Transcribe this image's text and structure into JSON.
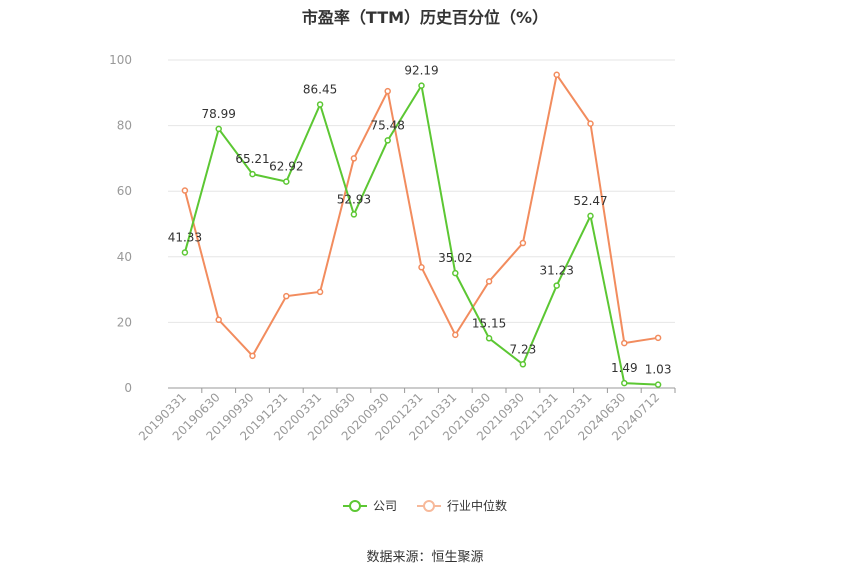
{
  "chart_data": {
    "type": "line",
    "title": "市盈率（TTM）历史百分位（%）",
    "categories": [
      "20190331",
      "20190630",
      "20190930",
      "20191231",
      "20200331",
      "20200630",
      "20200930",
      "20201231",
      "20210331",
      "20210630",
      "20210930",
      "20211231",
      "20220331",
      "20240630",
      "20240712"
    ],
    "ylim": [
      0,
      100
    ],
    "yticks": [
      0,
      20,
      40,
      60,
      80,
      100
    ],
    "grid": true,
    "legend_position": "bottom",
    "series": [
      {
        "name": "公司",
        "color": "#5cc733",
        "values": [
          41.33,
          78.99,
          65.21,
          62.92,
          86.45,
          52.93,
          75.48,
          92.19,
          35.02,
          15.15,
          7.23,
          31.23,
          52.47,
          1.49,
          1.03
        ],
        "labels": [
          "41.33",
          "78.99",
          "65.21",
          "62.92",
          "86.45",
          "52.93",
          "75.48",
          "92.19",
          "35.02",
          "15.15",
          "7.23",
          "31.23",
          "52.47",
          "1.49",
          "1.03"
        ]
      },
      {
        "name": "行业中位数",
        "color": "#f28c5e",
        "values": [
          60.2,
          20.8,
          9.8,
          28.0,
          29.3,
          70.0,
          90.5,
          36.8,
          16.2,
          32.5,
          44.2,
          95.5,
          80.6,
          13.7,
          15.3
        ]
      }
    ]
  },
  "source": "数据来源：恒生聚源"
}
